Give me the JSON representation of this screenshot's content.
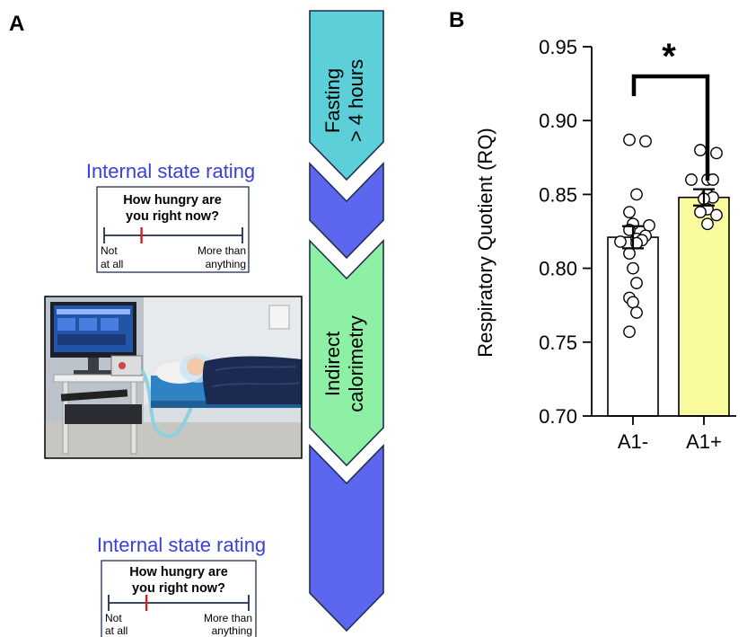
{
  "panel_a": {
    "letter": "A",
    "rating_title_1": "Internal state rating",
    "rating_title_2": "Internal state rating",
    "scale_question_line1": "How hungry are",
    "scale_question_line2": "you right now?",
    "scale_left_line1": "Not",
    "scale_left_line2": "at all",
    "scale_right_line1": "More than",
    "scale_right_line2": "anything",
    "scale_marker_fraction": 0.27,
    "step1_line1": "Fasting",
    "step1_line2": "> 4 hours",
    "step3_line1": "Indirect",
    "step3_line2": "calorimetry",
    "colors": {
      "fasting": "#5ccfd8",
      "rating": "#5c66ef",
      "calorimetry": "#8ef0a4",
      "marker": "#cc2222",
      "outline": "#1f2f4f"
    }
  },
  "panel_b": {
    "letter": "B"
  },
  "chart_data": {
    "type": "bar",
    "categories": [
      "A1-",
      "A1+"
    ],
    "ylabel": "Respiratory Quotient (RQ)",
    "ylim": [
      0.7,
      0.95
    ],
    "yticks": [
      "0.70",
      "0.75",
      "0.80",
      "0.85",
      "0.90",
      "0.95"
    ],
    "values": [
      0.821,
      0.848
    ],
    "sem": [
      0.0075,
      0.0055
    ],
    "bar_colors": [
      "#ffffff",
      "#fafa9e"
    ],
    "points": [
      [
        0.887,
        0.886,
        0.85,
        0.838,
        0.83,
        0.829,
        0.826,
        0.822,
        0.82,
        0.819,
        0.818,
        0.817,
        0.81,
        0.8,
        0.79,
        0.78,
        0.777,
        0.77,
        0.757
      ],
      [
        0.88,
        0.878,
        0.86,
        0.86,
        0.86,
        0.85,
        0.848,
        0.847,
        0.84,
        0.838,
        0.836,
        0.83
      ]
    ],
    "significance": "*"
  }
}
